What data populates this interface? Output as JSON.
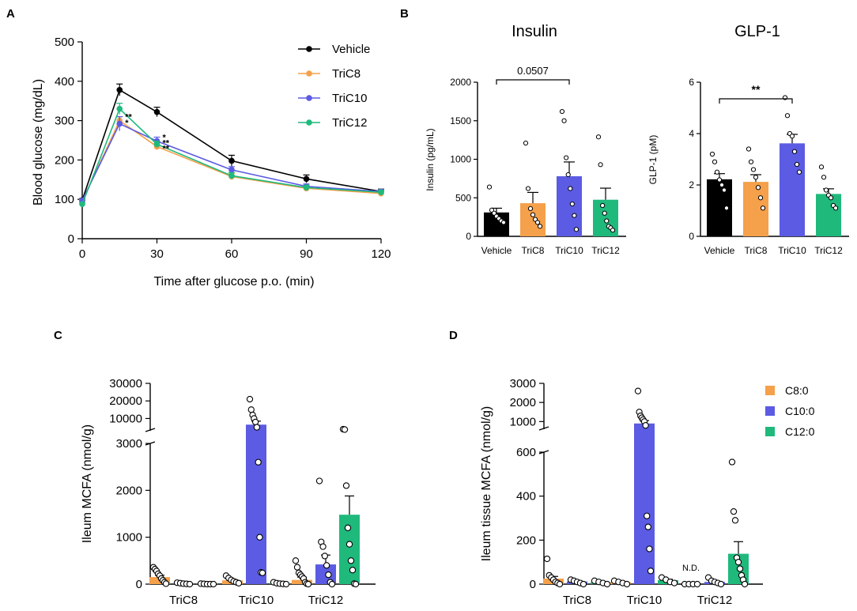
{
  "panels": {
    "A": "A",
    "B": "B",
    "C": "C",
    "D": "D"
  },
  "chart_data": [
    {
      "id": "A",
      "type": "line",
      "xlabel": "Time after glucose p.o. (min)",
      "ylabel": "Blood glucose (mg/dL)",
      "x": [
        0,
        15,
        30,
        60,
        90,
        120
      ],
      "xticks": [
        "0",
        "30",
        "60",
        "90",
        "120"
      ],
      "xtick_values": [
        0,
        30,
        60,
        90,
        120
      ],
      "yticks": [
        "0",
        "100",
        "200",
        "300",
        "400",
        "500"
      ],
      "ytick_values": [
        0,
        100,
        200,
        300,
        400,
        500
      ],
      "xlim": [
        0,
        120
      ],
      "ylim": [
        0,
        500
      ],
      "legend_position": "top-right",
      "series": [
        {
          "name": "Vehicle",
          "color": "#000000",
          "values": [
            98,
            378,
            322,
            198,
            152,
            120
          ],
          "err": [
            4,
            15,
            12,
            14,
            10,
            6
          ]
        },
        {
          "name": "TriC8",
          "color": "#f5a04a",
          "values": [
            95,
            300,
            234,
            158,
            128,
            115
          ],
          "err": [
            4,
            10,
            8,
            8,
            6,
            5
          ]
        },
        {
          "name": "TriC10",
          "color": "#5b5be3",
          "values": [
            97,
            292,
            248,
            175,
            133,
            120
          ],
          "err": [
            4,
            18,
            10,
            8,
            6,
            5
          ]
        },
        {
          "name": "TriC12",
          "color": "#1fb97c",
          "values": [
            88,
            330,
            240,
            160,
            130,
            118
          ],
          "err": [
            4,
            14,
            8,
            8,
            6,
            5
          ]
        }
      ],
      "annotations": [
        {
          "text": "**",
          "x": 15,
          "y": 310
        },
        {
          "text": "*",
          "x": 15,
          "y": 295
        },
        {
          "text": "*",
          "x": 30,
          "y": 258
        },
        {
          "text": "**",
          "x": 30,
          "y": 244
        },
        {
          "text": "**",
          "x": 30,
          "y": 230
        }
      ]
    },
    {
      "id": "B1",
      "type": "bar",
      "title": "Insulin",
      "ylabel": "Insulin (pg/mL)",
      "categories": [
        "Vehicle",
        "TriC8",
        "TriC10",
        "TriC12"
      ],
      "colors": [
        "#000000",
        "#f5a04a",
        "#5b5be3",
        "#1fb97c"
      ],
      "values": [
        310,
        430,
        780,
        475
      ],
      "err": [
        55,
        140,
        185,
        150
      ],
      "points": [
        [
          640,
          340,
          300,
          260,
          230,
          200,
          180
        ],
        [
          1210,
          620,
          360,
          280,
          220,
          180,
          130
        ],
        [
          1620,
          1500,
          1020,
          800,
          620,
          420,
          270,
          90
        ],
        [
          1290,
          930,
          400,
          300,
          200,
          130,
          110,
          80
        ]
      ],
      "ylim": [
        0,
        2000
      ],
      "yticks": [
        "0",
        "500",
        "1000",
        "1500",
        "2000"
      ],
      "ytick_values": [
        0,
        500,
        1000,
        1500,
        2000
      ],
      "bracket": {
        "from": "Vehicle",
        "to": "TriC10",
        "label": "0.0507"
      }
    },
    {
      "id": "B2",
      "type": "bar",
      "title": "GLP-1",
      "ylabel": "GLP-1 (pM)",
      "categories": [
        "Vehicle",
        "TriC8",
        "TriC10",
        "TriC12"
      ],
      "colors": [
        "#000000",
        "#f5a04a",
        "#5b5be3",
        "#1fb97c"
      ],
      "values": [
        2.22,
        2.12,
        3.62,
        1.65
      ],
      "err": [
        0.22,
        0.28,
        0.35,
        0.2
      ],
      "points": [
        [
          3.2,
          2.9,
          2.5,
          2.2,
          2.0,
          1.8,
          1.1
        ],
        [
          3.4,
          2.9,
          2.6,
          2.3,
          1.9,
          1.5,
          1.1
        ],
        [
          5.4,
          4.7,
          4.0,
          3.9,
          3.3,
          2.8,
          2.5
        ],
        [
          2.7,
          2.3,
          1.8,
          1.6,
          1.5,
          1.2,
          1.1
        ]
      ],
      "ylim": [
        0,
        6
      ],
      "yticks": [
        "0",
        "2",
        "4",
        "6"
      ],
      "ytick_values": [
        0,
        2,
        4,
        6
      ],
      "bracket": {
        "from": "Vehicle",
        "to": "TriC10",
        "label": "**"
      }
    },
    {
      "id": "C",
      "type": "bar",
      "ylabel": "Ileum MCFA (nmol/g)",
      "groups": [
        "TriC8",
        "TriC10",
        "TriC12"
      ],
      "series_names": [
        "C8:0",
        "C10:0",
        "C12:0"
      ],
      "colors": [
        "#f5a04a",
        "#5b5be3",
        "#1fb97c"
      ],
      "values": [
        [
          150,
          20,
          10
        ],
        [
          80,
          6500,
          20
        ],
        [
          90,
          420,
          1480
        ]
      ],
      "err": [
        [
          40,
          0,
          0
        ],
        [
          20,
          2000,
          0
        ],
        [
          60,
          200,
          400
        ]
      ],
      "points": [
        [
          [
            360,
            320,
            280,
            220,
            180,
            120,
            80,
            40,
            10
          ],
          [
            30,
            20,
            10,
            5,
            0
          ],
          [
            10,
            5,
            0,
            0,
            0
          ]
        ],
        [
          [
            180,
            130,
            90,
            60,
            40,
            20
          ],
          [
            21000,
            15000,
            12000,
            10000,
            8000,
            5000,
            2600,
            1000,
            250,
            240
          ],
          [
            40,
            20,
            10,
            5,
            0
          ]
        ],
        [
          [
            500,
            360,
            240,
            200,
            160,
            120,
            40,
            10,
            0
          ],
          [
            2200,
            900,
            800,
            600,
            400,
            200,
            40,
            0
          ],
          [
            3900,
            3700,
            2100,
            1200,
            850,
            500,
            300,
            10,
            0
          ]
        ]
      ],
      "yticks": [
        "0",
        "1000",
        "2000",
        "3000",
        "10000",
        "20000",
        "30000"
      ],
      "axis_break": {
        "lower_range": [
          0,
          3000
        ],
        "upper_range": [
          3000,
          30000
        ]
      }
    },
    {
      "id": "D",
      "type": "bar",
      "ylabel": "Ileum tissue MCFA (nmol/g)",
      "groups": [
        "TriC8",
        "TriC10",
        "TriC12"
      ],
      "series_names": [
        "C8:0",
        "C10:0",
        "C12:0"
      ],
      "colors": [
        "#f5a04a",
        "#5b5be3",
        "#1fb97c"
      ],
      "values": [
        [
          25,
          12,
          8
        ],
        [
          8,
          900,
          18
        ],
        [
          0,
          10,
          138
        ]
      ],
      "err": [
        [
          10,
          3,
          2
        ],
        [
          2,
          150,
          4
        ],
        [
          0,
          3,
          55
        ]
      ],
      "points": [
        [
          [
            115,
            40,
            30,
            20,
            10,
            5,
            0
          ],
          [
            20,
            15,
            10,
            5,
            0
          ],
          [
            15,
            10,
            5,
            0
          ]
        ],
        [
          [
            15,
            10,
            5,
            0
          ],
          [
            2600,
            1500,
            1300,
            1200,
            1100,
            1000,
            800,
            310,
            260,
            160,
            60
          ],
          [
            30,
            20,
            10,
            5
          ]
        ],
        [
          [
            0,
            0,
            0,
            0
          ],
          [
            30,
            15,
            10,
            5,
            0
          ],
          [
            555,
            330,
            290,
            120,
            100,
            70,
            40,
            20,
            0
          ]
        ]
      ],
      "not_detected_label": "N.D.",
      "yticks": [
        "0",
        "200",
        "400",
        "600",
        "1000",
        "2000",
        "3000"
      ],
      "axis_break": {
        "lower_range": [
          0,
          600
        ],
        "upper_range": [
          600,
          3000
        ]
      },
      "legend_position": "top-right"
    }
  ]
}
